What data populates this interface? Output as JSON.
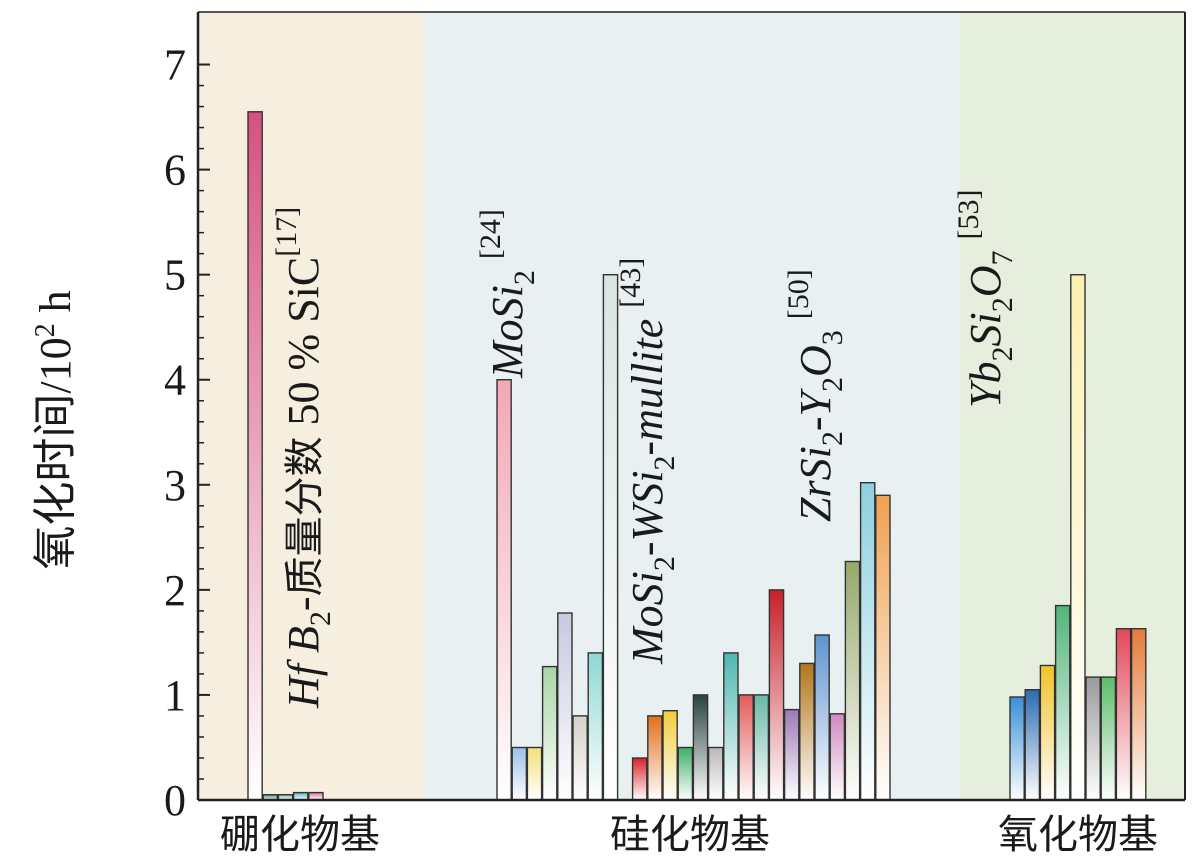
{
  "chart_data": {
    "type": "bar",
    "ylabel_main": "氧化时间",
    "ylabel_unit": "/10",
    "ylabel_unit_exp": "2",
    "ylabel_unit_suffix": " h",
    "ylim": [
      0,
      7.5
    ],
    "yticks": [
      "0",
      "1",
      "2",
      "3",
      "4",
      "5",
      "6",
      "7"
    ],
    "ytick_values": [
      0,
      1,
      2,
      3,
      4,
      5,
      6,
      7
    ],
    "groups": [
      {
        "label": "硼化物基",
        "background": "#f6eedf",
        "x_range": [
          0,
          3.4
        ]
      },
      {
        "label": "硅化物基",
        "background": "#e8f0f2",
        "x_range": [
          3.4,
          11.9
        ]
      },
      {
        "label": "氧化物基",
        "background": "#e6eedd",
        "x_range": [
          11.9,
          15.6
        ]
      }
    ],
    "bars": [
      {
        "group": "硼化物基",
        "value": 6.55,
        "color": "#d4527f"
      },
      {
        "group": "硼化物基",
        "value": 0.05,
        "color": "#3f8f7a"
      },
      {
        "group": "硼化物基",
        "value": 0.05,
        "color": "#8fb0a6"
      },
      {
        "group": "硼化物基",
        "value": 0.07,
        "color": "#56b7c8"
      },
      {
        "group": "硼化物基",
        "value": 0.07,
        "color": "#e07aa0"
      },
      {
        "group": "硅化物基",
        "value": 4.0,
        "color": "#f4a7b4"
      },
      {
        "group": "硅化物基",
        "value": 0.5,
        "color": "#9cc0ea"
      },
      {
        "group": "硅化物基",
        "value": 0.5,
        "color": "#f4e07a"
      },
      {
        "group": "硅化物基",
        "value": 1.27,
        "color": "#a8d6a4"
      },
      {
        "group": "硅化物基",
        "value": 1.78,
        "color": "#c8c8e2"
      },
      {
        "group": "硅化物基",
        "value": 0.8,
        "color": "#d6d0c8"
      },
      {
        "group": "硅化物基",
        "value": 1.4,
        "color": "#8fd8d2"
      },
      {
        "group": "硅化物基",
        "value": 5.0,
        "color": "#d9e6e1"
      },
      {
        "group": "硅化物基",
        "value": 0.4,
        "color": "#d8232a"
      },
      {
        "group": "硅化物基",
        "value": 0.8,
        "color": "#e26f1c"
      },
      {
        "group": "硅化物基",
        "value": 0.85,
        "color": "#f2cc3a"
      },
      {
        "group": "硅化物基",
        "value": 0.5,
        "color": "#3fae6a"
      },
      {
        "group": "硅化物基",
        "value": 1.0,
        "color": "#28433f"
      },
      {
        "group": "硅化物基",
        "value": 0.5,
        "color": "#b8b8b8"
      },
      {
        "group": "硅化物基",
        "value": 1.4,
        "color": "#4fb7b0"
      },
      {
        "group": "硅化物基",
        "value": 1.0,
        "color": "#e25a5a"
      },
      {
        "group": "硅化物基",
        "value": 1.0,
        "color": "#6ab8a8"
      },
      {
        "group": "硅化物基",
        "value": 2.0,
        "color": "#c8202a"
      },
      {
        "group": "硅化物基",
        "value": 0.86,
        "color": "#9a7ab8"
      },
      {
        "group": "硅化物基",
        "value": 1.3,
        "color": "#b3761c"
      },
      {
        "group": "硅化物基",
        "value": 1.57,
        "color": "#5e93d0"
      },
      {
        "group": "硅化物基",
        "value": 0.82,
        "color": "#d08ac0"
      },
      {
        "group": "硅化物基",
        "value": 2.27,
        "color": "#96a86a"
      },
      {
        "group": "硅化物基",
        "value": 3.02,
        "color": "#8ccfe0"
      },
      {
        "group": "硅化物基",
        "value": 2.9,
        "color": "#f0a050"
      },
      {
        "group": "氧化物基",
        "value": 0.98,
        "color": "#3a8fd8"
      },
      {
        "group": "氧化物基",
        "value": 1.05,
        "color": "#2c6ab0"
      },
      {
        "group": "氧化物基",
        "value": 1.28,
        "color": "#f2c22a"
      },
      {
        "group": "氧化物基",
        "value": 1.85,
        "color": "#52b47a"
      },
      {
        "group": "氧化物基",
        "value": 5.0,
        "color": "#fbf0b0"
      },
      {
        "group": "氧化物基",
        "value": 1.17,
        "color": "#9a9a9a"
      },
      {
        "group": "氧化物基",
        "value": 1.17,
        "color": "#5cbc6a"
      },
      {
        "group": "氧化物基",
        "value": 1.63,
        "color": "#e2485a"
      },
      {
        "group": "氧化物基",
        "value": 1.63,
        "color": "#e67a3a"
      }
    ],
    "annotations": [
      {
        "parts": [
          [
            "Hf B",
            "i"
          ],
          [
            "2",
            "sub"
          ],
          [
            "-",
            "i"
          ],
          [
            "质量分数",
            "cjk"
          ],
          [
            " 50 % SiC",
            "up"
          ],
          [
            "[17]",
            "sup"
          ]
        ]
      },
      {
        "parts": [
          [
            "MoSi",
            "i"
          ],
          [
            "2",
            "sub"
          ],
          [
            " ",
            ""
          ],
          [
            "[24]",
            "sup"
          ]
        ]
      },
      {
        "parts": [
          [
            "MoSi",
            "i"
          ],
          [
            "2",
            "sub"
          ],
          [
            "-WSi",
            "i"
          ],
          [
            "2",
            "sub"
          ],
          [
            "-mullite",
            "i"
          ],
          [
            " ",
            ""
          ],
          [
            "[43]",
            "sup"
          ]
        ]
      },
      {
        "parts": [
          [
            "ZrSi",
            "i"
          ],
          [
            "2",
            "sub"
          ],
          [
            "-Y",
            "i"
          ],
          [
            "2",
            "sub"
          ],
          [
            "O",
            "i"
          ],
          [
            "3",
            "sub"
          ],
          [
            " ",
            ""
          ],
          [
            "[50]",
            "sup"
          ]
        ]
      },
      {
        "parts": [
          [
            "Yb",
            "i"
          ],
          [
            "2",
            "sub"
          ],
          [
            "Si",
            "i"
          ],
          [
            "2",
            "sub"
          ],
          [
            "O",
            "i"
          ],
          [
            "7",
            "sub"
          ],
          [
            " ",
            ""
          ],
          [
            "[53]",
            "sup"
          ]
        ]
      }
    ]
  }
}
